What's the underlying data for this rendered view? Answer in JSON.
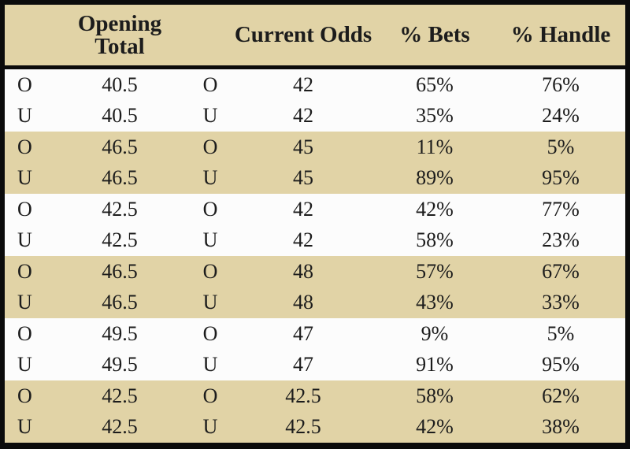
{
  "chart_data": {
    "type": "table",
    "title": "",
    "columns": [
      "",
      "Opening Total",
      "",
      "Current Odds",
      "% Bets",
      "% Handle"
    ],
    "rows": [
      [
        "O",
        "40.5",
        "O",
        "42",
        "65%",
        "76%"
      ],
      [
        "U",
        "40.5",
        "U",
        "42",
        "35%",
        "24%"
      ],
      [
        "O",
        "46.5",
        "O",
        "45",
        "11%",
        "5%"
      ],
      [
        "U",
        "46.5",
        "U",
        "45",
        "89%",
        "95%"
      ],
      [
        "O",
        "42.5",
        "O",
        "42",
        "42%",
        "77%"
      ],
      [
        "U",
        "42.5",
        "U",
        "42",
        "58%",
        "23%"
      ],
      [
        "O",
        "46.5",
        "O",
        "48",
        "57%",
        "67%"
      ],
      [
        "U",
        "46.5",
        "U",
        "48",
        "43%",
        "33%"
      ],
      [
        "O",
        "49.5",
        "O",
        "47",
        "9%",
        "5%"
      ],
      [
        "U",
        "49.5",
        "U",
        "47",
        "91%",
        "95%"
      ],
      [
        "O",
        "42.5",
        "O",
        "42.5",
        "58%",
        "62%"
      ],
      [
        "U",
        "42.5",
        "U",
        "42.5",
        "42%",
        "38%"
      ]
    ],
    "layout": {
      "row_banding": "pairs of rows alternate white then tan, starting with white",
      "grid": "off",
      "outer_border": "thick black"
    }
  },
  "colors": {
    "band_tan": "#e1d3a6",
    "row_white": "#fcfcfc",
    "border_black": "#0b0b0b",
    "text": "#1c1c1c"
  }
}
